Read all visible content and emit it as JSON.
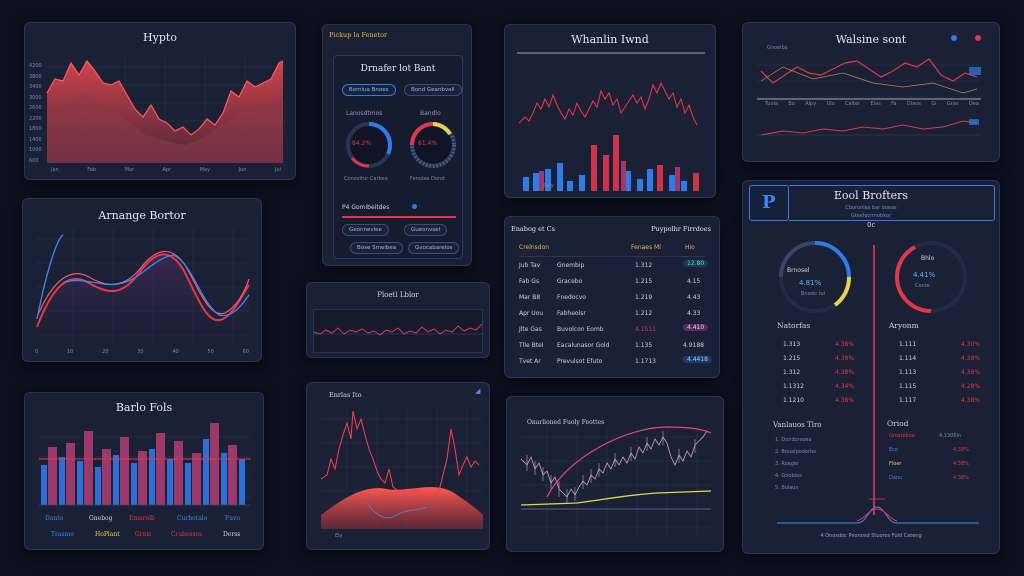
{
  "panel1": {
    "title": "Hypto",
    "tick_labels": [
      "Jan",
      "Feb",
      "Mar",
      "Apr",
      "May",
      "Jun",
      "Jul"
    ],
    "y_labels": [
      "4200",
      "3800",
      "3400",
      "3000",
      "2600",
      "2200",
      "1800",
      "1400",
      "1000",
      "600"
    ]
  },
  "panel2": {
    "title": "Arnange Bortor",
    "tick_labels": [
      "0",
      "10",
      "20",
      "30",
      "40",
      "50",
      "60"
    ]
  },
  "panel3": {
    "title": "Barlo Fols",
    "legend": [
      "Danto",
      "Gnebog",
      "Emarolb",
      "Curbotalo",
      "Fuvo",
      "Trasmo",
      "HoPlant",
      "Greis",
      "Crabessos",
      "Derss"
    ]
  },
  "panel4": {
    "header": "Pickup la Fenetor",
    "title": "Drnafer lot Bant",
    "tabs": [
      "Bomiua Bnoes",
      "Bond Geanbvall"
    ],
    "gauge_labels": [
      "Lanosdtmos",
      "Bandlo"
    ],
    "gauge_values": [
      "84.2%",
      "61.4%"
    ],
    "gauge_captions": [
      "Conovitur Carbea",
      "Fenolae Dorot"
    ],
    "slider_label": "P4 Gomibeitdes",
    "buttons": [
      "Geonnevlee",
      "Gueonvsel",
      "Bose Smeibea",
      "Gvocabarelos"
    ]
  },
  "panel5": {
    "title": "Ploetl Lblor"
  },
  "panel6": {
    "title": "Enrlas Ito"
  },
  "panel7": {
    "title": "Whanlin Iwnd",
    "caption": "Suly"
  },
  "panel8": {
    "title_left": "Enabog et Cs",
    "title_right": "Puypolhr Firrdoes",
    "col_headers": [
      "Crelnsdon",
      "Fenaes Ml",
      "Hio"
    ],
    "rows": [
      [
        "Jub  Tav",
        "Gnembip",
        "1.312",
        "12.80"
      ],
      [
        "Fab  Gs",
        "Gracebo",
        "1.215",
        "4.15"
      ],
      [
        "Mar  B8",
        "Fnedocvo",
        "1.219",
        "4.43"
      ],
      [
        "Apr  Uou",
        "Fabheolsr",
        "1.212",
        "4.33"
      ],
      [
        "Jlte  Gas",
        "Buvolcon Eomb",
        "4.1511",
        "4.410"
      ],
      [
        "Tlle  Btel",
        "Eacalunasor Gold",
        "1.135",
        "4.9188"
      ],
      [
        "Tvet  Ar",
        "Prevulsot Efuto",
        "1.1713",
        "4.4418"
      ]
    ]
  },
  "panel9": {
    "title": "Onarlioned Fuoly Feottes"
  },
  "panel10": {
    "title": "Walsine sont",
    "y_label": "Gnoelbs",
    "tick_labels": [
      "Tuola",
      "Bo",
      "Alpy",
      "Ulo",
      "Calter",
      "Elas",
      "Fa",
      "Dlaos",
      "Gi",
      "Gras",
      "Dea"
    ]
  },
  "panel11": {
    "logo": "P",
    "title": "Eool Brofters",
    "subtitle": "Cboronlas bar ooeas",
    "subtitle2": "Gteelocrmobkor",
    "badge": "0c",
    "gauges": [
      {
        "label": "Brnosel",
        "value": "4.81%",
        "sub": "Bnodo tul"
      },
      {
        "label": "Bhlo",
        "value": "4.41%",
        "sub": "Conte"
      }
    ],
    "left_col_title": "Natorfas",
    "right_col_title": "Aryonm",
    "left_rows": [
      [
        "1.313",
        "4.38%"
      ],
      [
        "1.215",
        "4.38%"
      ],
      [
        "1.312",
        "4.38%"
      ],
      [
        "1.1312",
        "4.34%"
      ],
      [
        "1.1210",
        "4.38%"
      ]
    ],
    "right_rows": [
      [
        "1.111",
        "4.30%"
      ],
      [
        "1.114",
        "4.38%"
      ],
      [
        "1.113",
        "4.38%"
      ],
      [
        "1.115",
        "4.28%"
      ],
      [
        "1.117",
        "4.38%"
      ]
    ],
    "lower_left_title": "Vanlauos Tlro",
    "lower_right_title": "Oriod",
    "lower_items": [
      "1. Dondorsoea",
      "2. Boualpodorbe",
      "3. Roagle",
      "4. Gnobios",
      "5. Bolaus"
    ],
    "lower_right_items": [
      "Grosteboa",
      "Eco",
      "Floer",
      "Danu"
    ],
    "lower_right_values": [
      "4.1306ln",
      "4.38%",
      "4.38%",
      "4.38%"
    ],
    "footer": "4 Onosdoc  Pnonosd Stuoros Fuld Cateng"
  },
  "colors": {
    "accent_red": "#e2364a",
    "accent_blue": "#2f7be8",
    "accent_yellow": "#e6d44a",
    "panel_bg": "#1a2035",
    "page_bg": "#0d1120"
  }
}
